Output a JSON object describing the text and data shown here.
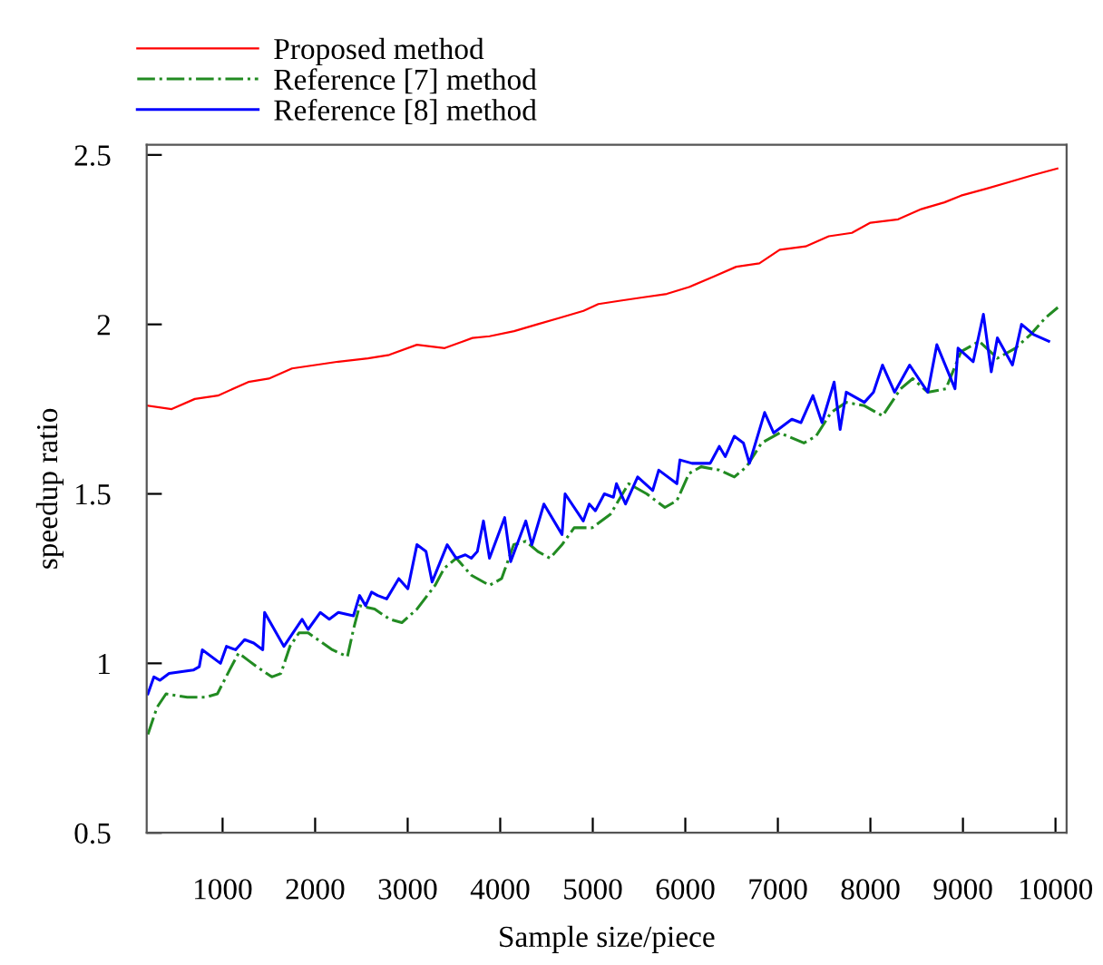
{
  "chart_data": {
    "type": "line",
    "xlabel": "Sample size/piece",
    "ylabel": "speedup ratio",
    "xlim": [
      180,
      10120
    ],
    "xticks": [
      1000,
      2000,
      3000,
      4000,
      5000,
      6000,
      7000,
      8000,
      9000,
      10000
    ],
    "ylim": [
      0.5,
      2.53
    ],
    "yticks": [
      0.5,
      1,
      1.5,
      2,
      2.5
    ],
    "grid": false,
    "legend": "top left",
    "marker": "none",
    "series": [
      {
        "name": "Proposed method",
        "color": "#ff0000",
        "line_style": "solid",
        "x": [
          193,
          450,
          700,
          950,
          1278,
          1500,
          1750,
          2000,
          2250,
          2571,
          2800,
          3100,
          3400,
          3700,
          3884,
          4150,
          4400,
          4650,
          4900,
          5060,
          5300,
          5550,
          5800,
          6040,
          6300,
          6550,
          6800,
          7020,
          7300,
          7550,
          7800,
          8000,
          8300,
          8550,
          8800,
          8980,
          9250,
          9500,
          9750,
          10020
        ],
        "values": [
          1.76,
          1.75,
          1.78,
          1.79,
          1.83,
          1.84,
          1.87,
          1.88,
          1.89,
          1.9,
          1.91,
          1.94,
          1.93,
          1.96,
          1.965,
          1.98,
          2.0,
          2.02,
          2.04,
          2.06,
          2.07,
          2.08,
          2.09,
          2.11,
          2.14,
          2.17,
          2.18,
          2.22,
          2.23,
          2.26,
          2.27,
          2.3,
          2.31,
          2.34,
          2.36,
          2.38,
          2.4,
          2.42,
          2.44,
          2.46
        ]
      },
      {
        "name": "Reference [7] method",
        "color": "#228b22",
        "line_style": "dashdot",
        "x": [
          193,
          291,
          389,
          618,
          814,
          944,
          1075,
          1173,
          1271,
          1369,
          1532,
          1630,
          1728,
          1826,
          1924,
          2186,
          2349,
          2414,
          2480,
          2643,
          2806,
          2937,
          3100,
          3296,
          3394,
          3525,
          3688,
          3884,
          4015,
          4146,
          4276,
          4407,
          4538,
          4668,
          4799,
          4995,
          5191,
          5387,
          5583,
          5779,
          5909,
          6040,
          6171,
          6367,
          6530,
          6661,
          6824,
          7020,
          7281,
          7412,
          7575,
          7739,
          7935,
          8131,
          8327,
          8457,
          8620,
          8816,
          8980,
          9176,
          9372,
          9568,
          9731,
          9894,
          10025
        ],
        "values": [
          0.79,
          0.87,
          0.91,
          0.9,
          0.9,
          0.91,
          0.98,
          1.03,
          1.01,
          0.99,
          0.96,
          0.97,
          1.05,
          1.09,
          1.09,
          1.04,
          1.02,
          1.1,
          1.17,
          1.16,
          1.13,
          1.12,
          1.16,
          1.23,
          1.28,
          1.31,
          1.26,
          1.23,
          1.25,
          1.35,
          1.36,
          1.33,
          1.31,
          1.35,
          1.4,
          1.4,
          1.44,
          1.53,
          1.5,
          1.46,
          1.48,
          1.56,
          1.58,
          1.57,
          1.55,
          1.58,
          1.65,
          1.68,
          1.65,
          1.67,
          1.74,
          1.77,
          1.76,
          1.73,
          1.81,
          1.84,
          1.8,
          1.81,
          1.92,
          1.95,
          1.9,
          1.93,
          1.97,
          2.02,
          2.05
        ]
      },
      {
        "name": "Reference [8] method",
        "color": "#0000ff",
        "line_style": "solid",
        "x": [
          193,
          258,
          324,
          422,
          683,
          748,
          781,
          977,
          1042,
          1140,
          1238,
          1336,
          1434,
          1454,
          1663,
          1859,
          1924,
          2055,
          2153,
          2251,
          2414,
          2480,
          2545,
          2610,
          2676,
          2773,
          2904,
          3002,
          3100,
          3198,
          3264,
          3427,
          3525,
          3623,
          3688,
          3753,
          3819,
          3884,
          4048,
          4113,
          4276,
          4342,
          4472,
          4668,
          4701,
          4897,
          4962,
          5028,
          5125,
          5223,
          5256,
          5354,
          5485,
          5648,
          5713,
          5909,
          5942,
          6073,
          6269,
          6367,
          6432,
          6530,
          6628,
          6693,
          6857,
          6955,
          7151,
          7249,
          7379,
          7477,
          7608,
          7673,
          7739,
          7935,
          8033,
          8131,
          8261,
          8424,
          8620,
          8718,
          8914,
          8947,
          9111,
          9221,
          9306,
          9372,
          9535,
          9633,
          9764,
          9927
        ],
        "values": [
          0.91,
          0.96,
          0.95,
          0.97,
          0.98,
          0.99,
          1.04,
          1.0,
          1.05,
          1.04,
          1.07,
          1.06,
          1.04,
          1.15,
          1.05,
          1.13,
          1.1,
          1.15,
          1.13,
          1.15,
          1.14,
          1.2,
          1.17,
          1.21,
          1.2,
          1.19,
          1.25,
          1.22,
          1.35,
          1.33,
          1.24,
          1.35,
          1.31,
          1.32,
          1.31,
          1.33,
          1.42,
          1.31,
          1.43,
          1.3,
          1.42,
          1.35,
          1.47,
          1.38,
          1.5,
          1.42,
          1.47,
          1.45,
          1.5,
          1.49,
          1.53,
          1.47,
          1.55,
          1.51,
          1.57,
          1.53,
          1.6,
          1.59,
          1.59,
          1.64,
          1.61,
          1.67,
          1.65,
          1.59,
          1.74,
          1.68,
          1.72,
          1.71,
          1.79,
          1.71,
          1.83,
          1.69,
          1.8,
          1.77,
          1.8,
          1.88,
          1.8,
          1.88,
          1.8,
          1.94,
          1.81,
          1.93,
          1.89,
          2.03,
          1.86,
          1.96,
          1.88,
          2.0,
          1.97,
          1.95
        ]
      }
    ]
  }
}
